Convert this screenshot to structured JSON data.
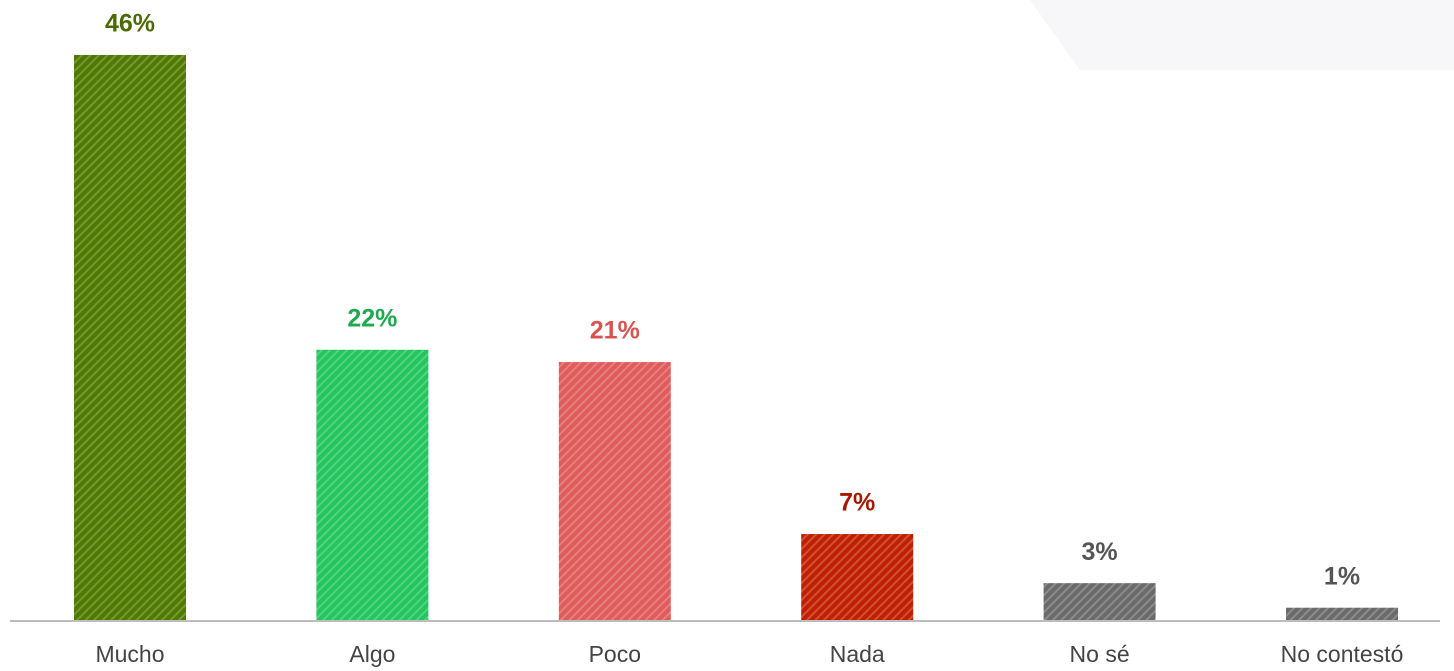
{
  "chart_data": {
    "type": "bar",
    "categories": [
      "Mucho",
      "Algo",
      "Poco",
      "Nada",
      "No sé",
      "No contestó"
    ],
    "values": [
      46,
      22,
      21,
      7,
      3,
      1
    ],
    "value_labels": [
      "46%",
      "22%",
      "21%",
      "7%",
      "3%",
      "1%"
    ],
    "colors": [
      "#4e7a00",
      "#22c55e",
      "#e05b5b",
      "#c01f00",
      "#6a6a6a",
      "#6a6a6a"
    ],
    "label_colors": [
      "#4a6b00",
      "#1faa4f",
      "#d9534f",
      "#a81800",
      "#555555",
      "#555555"
    ]
  }
}
